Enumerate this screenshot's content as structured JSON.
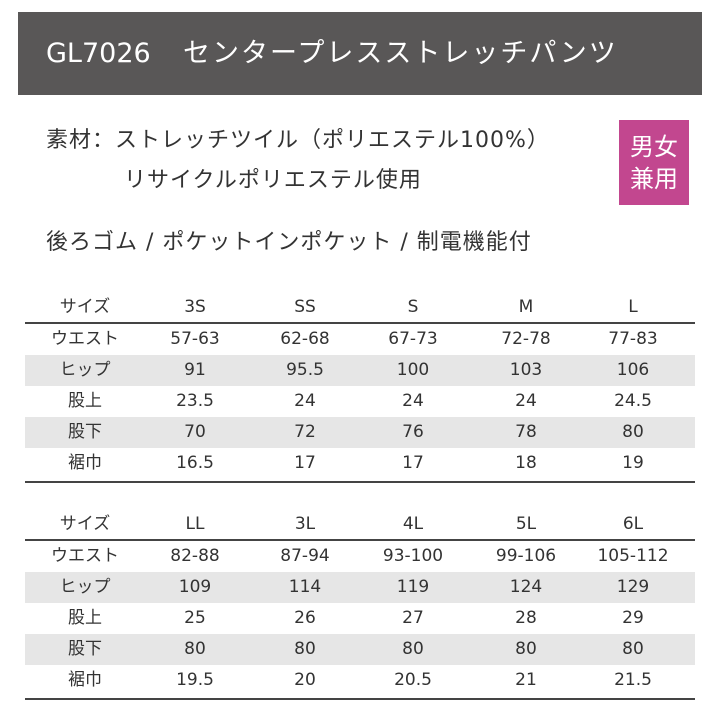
{
  "header": {
    "code": "GL7026",
    "title": "センタープレスストレッチパンツ"
  },
  "material": {
    "lines": [
      "素材：ストレッチツイル（ポリエステル100%）",
      "リサイクルポリエステル使用"
    ]
  },
  "badge": {
    "lines": [
      "男女",
      "兼用"
    ]
  },
  "features": "後ろゴム / ポケットインポケット / 制電機能付",
  "tables": [
    {
      "headers": [
        "サイズ",
        "3S",
        "SS",
        "S",
        "M",
        "L"
      ],
      "rows": [
        [
          "ウエスト",
          "57-63",
          "62-68",
          "67-73",
          "72-78",
          "77-83"
        ],
        [
          "ヒップ",
          "91",
          "95.5",
          "100",
          "103",
          "106"
        ],
        [
          "股上",
          "23.5",
          "24",
          "24",
          "24",
          "24.5"
        ],
        [
          "股下",
          "70",
          "72",
          "76",
          "78",
          "80"
        ],
        [
          "裾巾",
          "16.5",
          "17",
          "17",
          "18",
          "19"
        ]
      ]
    },
    {
      "headers": [
        "サイズ",
        "LL",
        "3L",
        "4L",
        "5L",
        "6L"
      ],
      "rows": [
        [
          "ウエスト",
          "82-88",
          "87-94",
          "93-100",
          "99-106",
          "105-112"
        ],
        [
          "ヒップ",
          "109",
          "114",
          "119",
          "124",
          "129"
        ],
        [
          "股上",
          "25",
          "26",
          "27",
          "28",
          "29"
        ],
        [
          "股下",
          "80",
          "80",
          "80",
          "80",
          "80"
        ],
        [
          "裾巾",
          "19.5",
          "20",
          "20.5",
          "21",
          "21.5"
        ]
      ]
    }
  ]
}
